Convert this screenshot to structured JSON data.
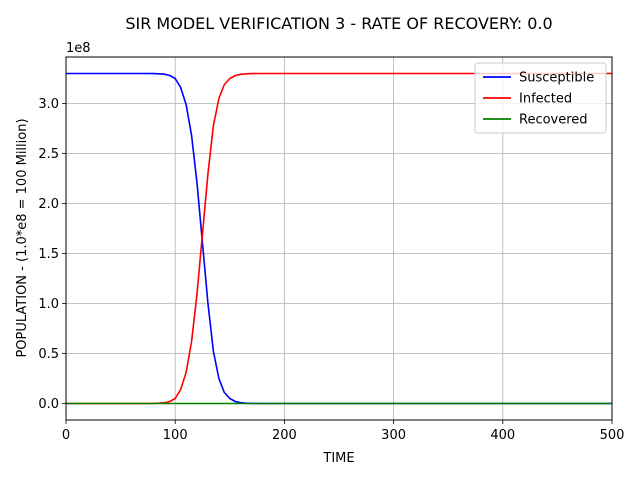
{
  "chart_data": {
    "type": "line",
    "title": "SIR MODEL VERIFICATION 3 - RATE OF RECOVERY: 0.0",
    "xlabel": "TIME",
    "ylabel": "POPULATION - (1.0*e8 = 100 Million)",
    "y_offset_label": "1e8",
    "xlim": [
      0,
      500
    ],
    "ylim": [
      -0.165,
      3.465
    ],
    "x_ticks": [
      0,
      100,
      200,
      300,
      400,
      500
    ],
    "x_tick_labels": [
      "0",
      "100",
      "200",
      "300",
      "400",
      "500"
    ],
    "y_ticks": [
      0.0,
      0.5,
      1.0,
      1.5,
      2.0,
      2.5,
      3.0
    ],
    "y_tick_labels": [
      "0.0",
      "0.5",
      "1.0",
      "1.5",
      "2.0",
      "2.5",
      "3.0"
    ],
    "grid": true,
    "legend_position": "top-right",
    "x": [
      0,
      20,
      40,
      60,
      70,
      80,
      85,
      90,
      95,
      100,
      105,
      110,
      115,
      120,
      125,
      130,
      135,
      140,
      145,
      150,
      155,
      160,
      165,
      170,
      180,
      200,
      250,
      300,
      400,
      500
    ],
    "series": [
      {
        "name": "Susceptible",
        "color": "#0000ff",
        "values": [
          3.3,
          3.3,
          3.3,
          3.3,
          3.3,
          3.299,
          3.297,
          3.293,
          3.28,
          3.25,
          3.16,
          2.99,
          2.68,
          2.2,
          1.6,
          1.0,
          0.52,
          0.25,
          0.11,
          0.05,
          0.02,
          0.008,
          0.003,
          0.001,
          0.0,
          0.0,
          0.0,
          0.0,
          0.0,
          0.0
        ]
      },
      {
        "name": "Infected",
        "color": "#ff0000",
        "values": [
          0.0,
          0.0,
          0.0,
          0.0,
          0.0,
          0.001,
          0.003,
          0.007,
          0.02,
          0.05,
          0.14,
          0.31,
          0.62,
          1.1,
          1.7,
          2.3,
          2.78,
          3.05,
          3.19,
          3.25,
          3.28,
          3.292,
          3.297,
          3.299,
          3.3,
          3.3,
          3.3,
          3.3,
          3.3,
          3.3
        ]
      },
      {
        "name": "Recovered",
        "color": "#008000",
        "values": [
          0.0,
          0.0,
          0.0,
          0.0,
          0.0,
          0.0,
          0.0,
          0.0,
          0.0,
          0.0,
          0.0,
          0.0,
          0.0,
          0.0,
          0.0,
          0.0,
          0.0,
          0.0,
          0.0,
          0.0,
          0.0,
          0.0,
          0.0,
          0.0,
          0.0,
          0.0,
          0.0,
          0.0,
          0.0,
          0.0
        ]
      }
    ]
  }
}
